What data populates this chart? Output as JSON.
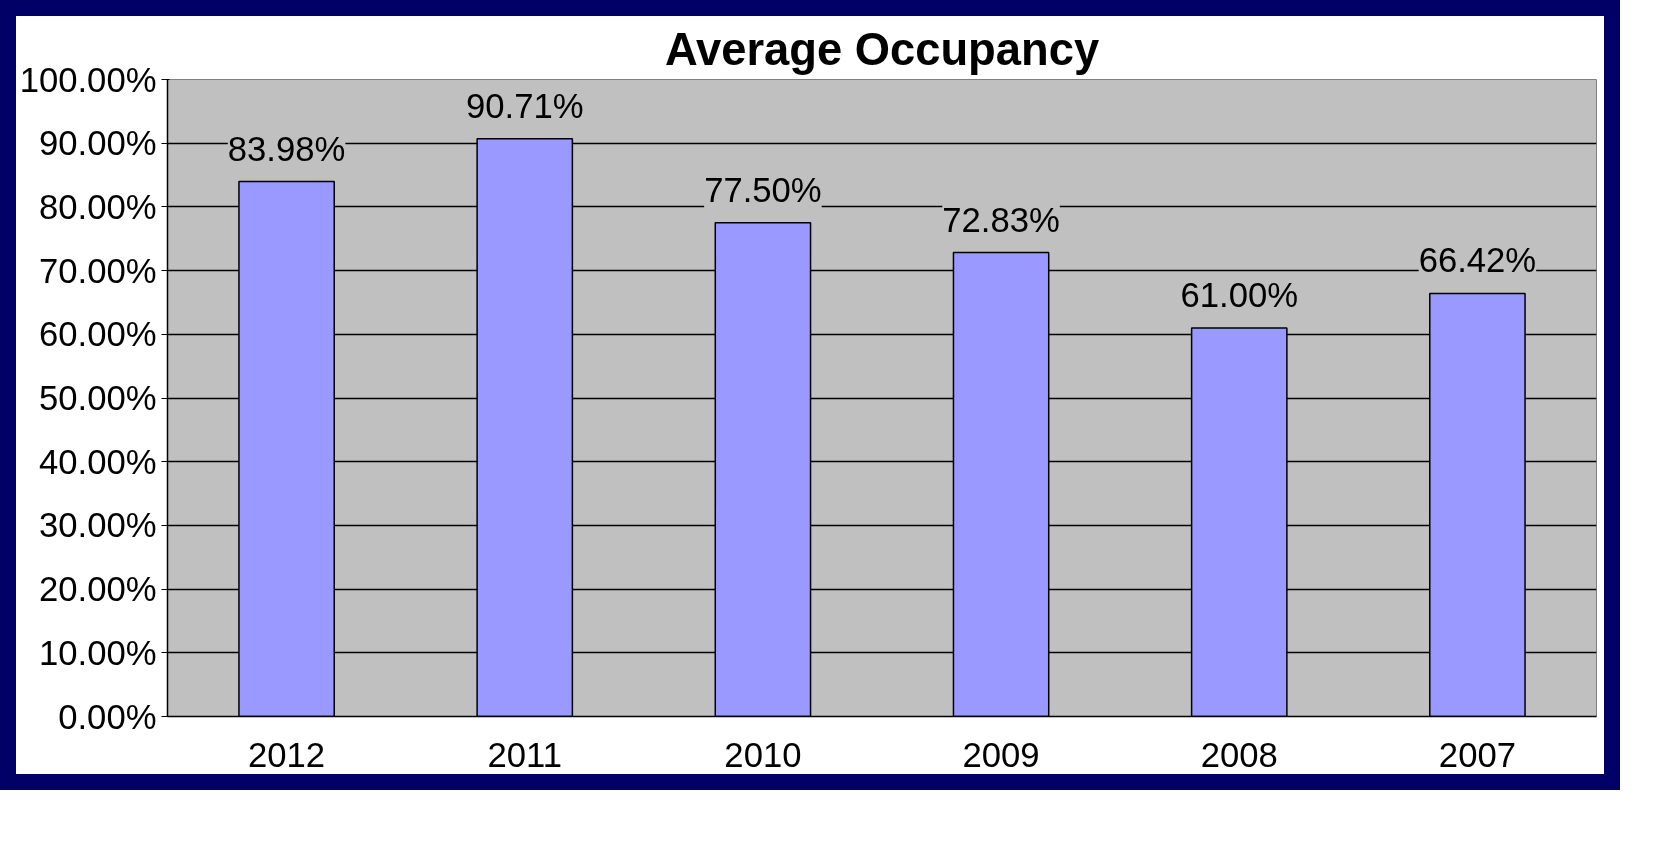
{
  "chart_data": {
    "type": "bar",
    "title": "Average Occupancy",
    "categories": [
      "2012",
      "2011",
      "2010",
      "2009",
      "2008",
      "2007"
    ],
    "values": [
      83.98,
      90.71,
      77.5,
      72.83,
      61.0,
      66.42
    ],
    "value_labels": [
      "83.98%",
      "90.71%",
      "77.50%",
      "72.83%",
      "61.00%",
      "66.42%"
    ],
    "color": "#9999ff",
    "ylim": [
      0,
      100
    ],
    "yticks": [
      {
        "value": 0,
        "label": "0.00%"
      },
      {
        "value": 10,
        "label": "10.00%"
      },
      {
        "value": 20,
        "label": "20.00%"
      },
      {
        "value": 30,
        "label": "30.00%"
      },
      {
        "value": 40,
        "label": "40.00%"
      },
      {
        "value": 50,
        "label": "50.00%"
      },
      {
        "value": 60,
        "label": "60.00%"
      },
      {
        "value": 70,
        "label": "70.00%"
      },
      {
        "value": 80,
        "label": "80.00%"
      },
      {
        "value": 90,
        "label": "90.00%"
      },
      {
        "value": 100,
        "label": "100.00%"
      }
    ],
    "grid": "y"
  }
}
